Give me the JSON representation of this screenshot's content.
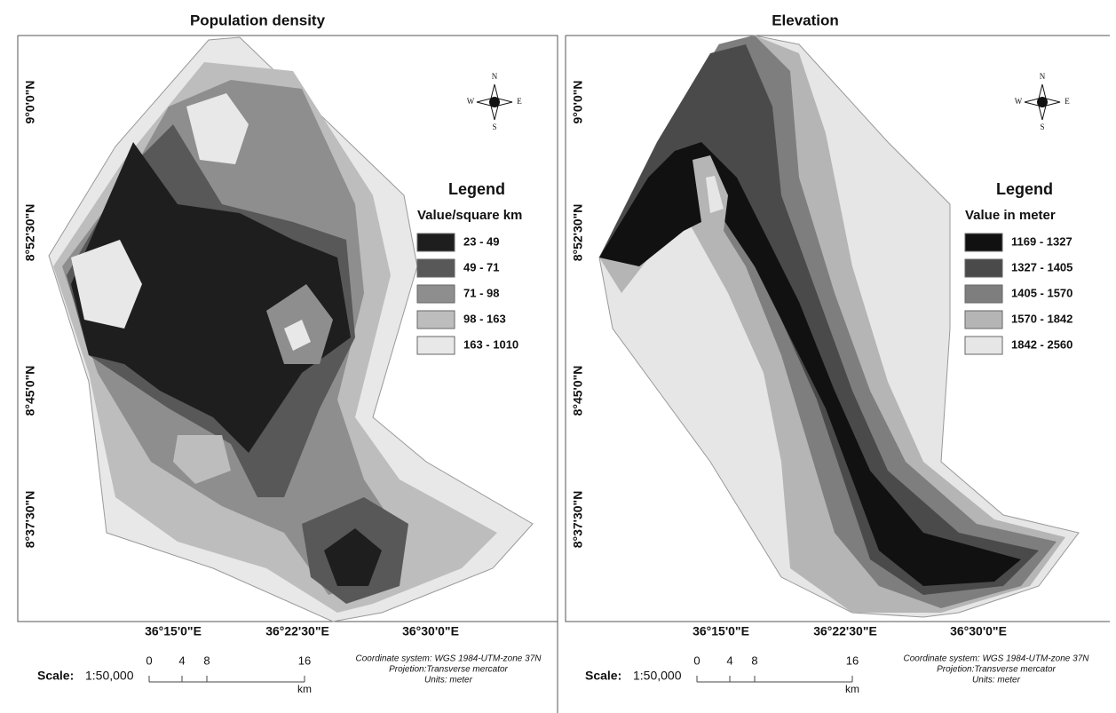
{
  "maps": [
    {
      "title": "Population density",
      "y_labels": [
        "9°0'0\"N",
        "8°52'30\"N",
        "8°45'0\"N",
        "8°37'30\"N"
      ],
      "x_labels": [
        "36°15'0\"E",
        "36°22'30\"E",
        "36°30'0\"E"
      ],
      "compass": {
        "north": "N",
        "south": "S",
        "west": "W",
        "east": "E"
      },
      "legend": {
        "title": "Legend",
        "subtitle": "Value/square km",
        "classes": [
          {
            "label": "23 - 49",
            "color": "#1e1e1e"
          },
          {
            "label": "49 - 71",
            "color": "#585858"
          },
          {
            "label": "71 - 98",
            "color": "#8e8e8e"
          },
          {
            "label": "98 - 163",
            "color": "#bdbdbd"
          },
          {
            "label": "163 - 1010",
            "color": "#e8e8e8"
          }
        ]
      },
      "scale": {
        "label": "Scale:",
        "ratio": "1:50,000",
        "ticks": [
          "0",
          "4",
          "8",
          "16"
        ],
        "unit": "km"
      },
      "notes": [
        "Coordinate system: WGS 1984-UTM-zone 37N",
        "Projetion:Transverse mercator",
        "Units: meter"
      ]
    },
    {
      "title": "Elevation",
      "y_labels": [
        "9°0'0\"N",
        "8°52'30\"N",
        "8°45'0\"N",
        "8°37'30\"N"
      ],
      "x_labels": [
        "36°15'0\"E",
        "36°22'30\"E",
        "36°30'0\"E"
      ],
      "compass": {
        "north": "N",
        "south": "S",
        "west": "W",
        "east": "E"
      },
      "legend": {
        "title": "Legend",
        "subtitle": "Value in meter",
        "classes": [
          {
            "label": "1169 - 1327",
            "color": "#111111"
          },
          {
            "label": "1327 - 1405",
            "color": "#4a4a4a"
          },
          {
            "label": "1405 - 1570",
            "color": "#7e7e7e"
          },
          {
            "label": "1570 - 1842",
            "color": "#b5b5b5"
          },
          {
            "label": "1842 - 2560",
            "color": "#e6e6e6"
          }
        ]
      },
      "scale": {
        "label": "Scale:",
        "ratio": "1:50,000",
        "ticks": [
          "0",
          "4",
          "8",
          "16"
        ],
        "unit": "km"
      },
      "notes": [
        "Coordinate system: WGS 1984-UTM-zone 37N",
        "Projetion:Transverse mercator",
        "Units: meter"
      ]
    }
  ]
}
